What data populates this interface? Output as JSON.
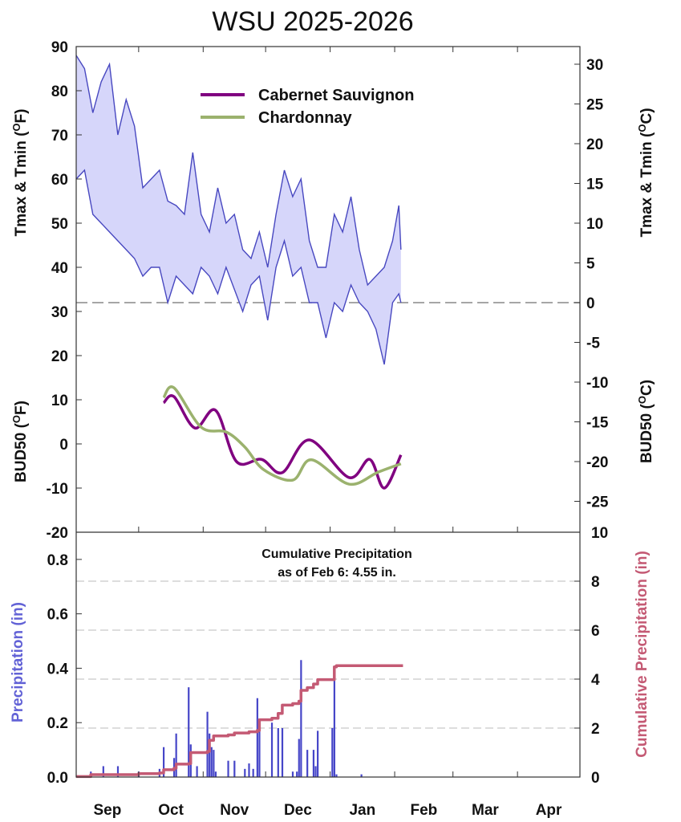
{
  "chart_data": [
    {
      "type": "area",
      "title": "WSU 2025-2026",
      "ylabel_left": {
        "text": "Tmax & Tmin (",
        "sup": "O",
        "unit": "F)"
      },
      "ylabel_right": {
        "text": "Tmax & Tmin (",
        "sup": "O",
        "unit": "C)"
      },
      "ylim_f": [
        -20,
        90
      ],
      "yticks_f": [
        90,
        80,
        70,
        60,
        50,
        40,
        30,
        20,
        10,
        0,
        -10,
        -20
      ],
      "yticks_c": [
        30,
        25,
        20,
        15,
        10,
        5,
        0,
        -5,
        -10,
        -15,
        -20,
        -25
      ],
      "freezing_line_f": 32,
      "x": [
        "2025-09-01",
        "2025-09-05",
        "2025-09-09",
        "2025-09-13",
        "2025-09-17",
        "2025-09-21",
        "2025-09-25",
        "2025-09-29",
        "2025-10-03",
        "2025-10-07",
        "2025-10-11",
        "2025-10-15",
        "2025-10-19",
        "2025-10-23",
        "2025-10-27",
        "2025-10-31",
        "2025-11-04",
        "2025-11-08",
        "2025-11-12",
        "2025-11-16",
        "2025-11-20",
        "2025-11-24",
        "2025-11-28",
        "2025-12-02",
        "2025-12-06",
        "2025-12-10",
        "2025-12-14",
        "2025-12-18",
        "2025-12-22",
        "2025-12-26",
        "2025-12-30",
        "2026-01-03",
        "2026-01-07",
        "2026-01-11",
        "2026-01-15",
        "2026-01-19",
        "2026-01-23",
        "2026-01-27",
        "2026-01-31",
        "2026-02-03",
        "2026-02-04"
      ],
      "series": [
        {
          "key": "tmax",
          "values": [
            88,
            85,
            75,
            82,
            86,
            70,
            78,
            72,
            58,
            60,
            62,
            55,
            54,
            52,
            66,
            52,
            48,
            58,
            50,
            52,
            44,
            42,
            48,
            40,
            52,
            62,
            56,
            60,
            46,
            40,
            40,
            52,
            48,
            56,
            44,
            36,
            38,
            40,
            46,
            54,
            44
          ]
        },
        {
          "key": "tmin",
          "values": [
            60,
            62,
            52,
            50,
            48,
            46,
            44,
            42,
            38,
            40,
            40,
            32,
            38,
            36,
            34,
            40,
            38,
            34,
            40,
            35,
            30,
            36,
            38,
            28,
            40,
            46,
            38,
            40,
            32,
            32,
            24,
            32,
            30,
            36,
            32,
            30,
            26,
            18,
            32,
            34,
            32
          ]
        }
      ],
      "colors": {
        "line": "#4848c0",
        "fill": "#d6d6fa",
        "freezing": "#888888"
      }
    },
    {
      "type": "line",
      "ylabel_left": {
        "text": "BUD50 (",
        "sup": "O",
        "unit": "F)"
      },
      "ylabel_right": {
        "text": "BUD50 (",
        "sup": "O",
        "unit": "C)"
      },
      "series": [
        {
          "name": "Cabernet Sauvignon",
          "color": "#800080",
          "x": [
            "2025-10-13",
            "2025-10-18",
            "2025-10-28",
            "2025-11-07",
            "2025-11-17",
            "2025-11-29",
            "2025-12-09",
            "2025-12-22",
            "2026-01-10",
            "2026-01-20",
            "2026-01-27",
            "2026-02-04"
          ],
          "values": [
            9.3,
            10.7,
            3.6,
            7.6,
            -4.0,
            -3.5,
            -6.5,
            0.9,
            -7.6,
            -3.5,
            -10,
            -2.5
          ]
        },
        {
          "name": "Chardonnay",
          "color": "#9bb26e",
          "x": [
            "2025-10-13",
            "2025-10-18",
            "2025-10-31",
            "2025-11-12",
            "2025-11-21",
            "2025-11-30",
            "2025-12-14",
            "2025-12-23",
            "2026-01-10",
            "2026-01-24",
            "2026-02-04"
          ],
          "values": [
            10.5,
            12.7,
            3.8,
            2.7,
            -0.7,
            -5.8,
            -8.2,
            -3.6,
            -9.1,
            -6.4,
            -4.5
          ]
        }
      ],
      "legend": "top-center"
    },
    {
      "type": "bar",
      "ylabel_left": "Precipitation (in)",
      "ylabel_right": "Cumulative Precipitation (in)",
      "ylim_left": [
        0,
        0.9
      ],
      "ylim_right": [
        0,
        10
      ],
      "yticks_left": [
        "0.0",
        "0.2",
        "0.4",
        "0.6",
        "0.8"
      ],
      "yticks_right": [
        "0",
        "2",
        "4",
        "6",
        "8",
        "10"
      ],
      "annotation": [
        "Cumulative Precipitation",
        "as of Feb 6:  4.55 in."
      ],
      "bars": {
        "color": "#4646c8",
        "x": [
          "2025-09-08",
          "2025-09-14",
          "2025-09-21",
          "2025-10-01",
          "2025-10-11",
          "2025-10-13",
          "2025-10-18",
          "2025-10-19",
          "2025-10-25",
          "2025-10-26",
          "2025-10-29",
          "2025-11-03",
          "2025-11-04",
          "2025-11-05",
          "2025-11-06",
          "2025-11-07",
          "2025-11-13",
          "2025-11-16",
          "2025-11-21",
          "2025-11-23",
          "2025-11-25",
          "2025-11-27",
          "2025-11-28",
          "2025-12-04",
          "2025-12-07",
          "2025-12-09",
          "2025-12-14",
          "2025-12-16",
          "2025-12-17",
          "2025-12-18",
          "2025-12-21",
          "2025-12-24",
          "2025-12-25",
          "2025-12-26",
          "2026-01-02",
          "2026-01-03",
          "2026-01-04",
          "2026-01-16"
        ],
        "values": [
          0.02,
          0.04,
          0.04,
          0.02,
          0.03,
          0.11,
          0.07,
          0.16,
          0.33,
          0.12,
          0.04,
          0.24,
          0.16,
          0.11,
          0.1,
          0.02,
          0.06,
          0.06,
          0.03,
          0.05,
          0.03,
          0.29,
          0.18,
          0.2,
          0.18,
          0.18,
          0.02,
          0.02,
          0.14,
          0.43,
          0.1,
          0.1,
          0.04,
          0.17,
          0.18,
          0.39,
          0.01,
          0.01
        ]
      },
      "cumulative": {
        "color": "#c45a74",
        "x": [
          "2025-09-01",
          "2025-09-08",
          "2025-10-01",
          "2025-10-11",
          "2025-10-13",
          "2025-10-18",
          "2025-10-19",
          "2025-10-25",
          "2025-10-26",
          "2025-11-03",
          "2025-11-04",
          "2025-11-06",
          "2025-11-13",
          "2025-11-16",
          "2025-11-23",
          "2025-11-27",
          "2025-11-28",
          "2025-12-04",
          "2025-12-07",
          "2025-12-09",
          "2025-12-14",
          "2025-12-17",
          "2025-12-18",
          "2025-12-21",
          "2025-12-24",
          "2025-12-26",
          "2026-01-02",
          "2026-01-03",
          "2026-01-04",
          "2026-02-05"
        ],
        "values": [
          0.02,
          0.1,
          0.14,
          0.17,
          0.3,
          0.36,
          0.53,
          0.55,
          1.0,
          1.05,
          1.5,
          1.68,
          1.72,
          1.8,
          1.85,
          1.9,
          2.34,
          2.4,
          2.6,
          2.94,
          3.0,
          3.1,
          3.54,
          3.65,
          3.8,
          3.98,
          3.98,
          4.5,
          4.55,
          4.55
        ]
      }
    }
  ],
  "x_axis": {
    "months": [
      "Sep",
      "Oct",
      "Nov",
      "Dec",
      "Jan",
      "Feb",
      "Mar",
      "Apr"
    ]
  }
}
